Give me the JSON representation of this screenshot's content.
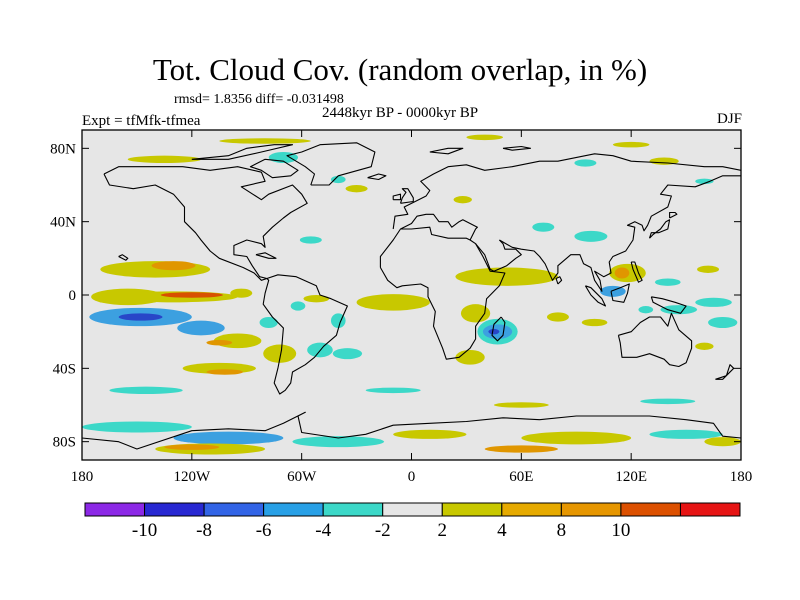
{
  "header": {
    "title": "Tot. Cloud Cov. (random overlap, in %)",
    "stats": "rmsd= 1.8356 diff= -0.031498",
    "experiment": "Expt = tfMfk-tfmea",
    "period": "2448kyr BP - 0000kyr BP",
    "season": "DJF"
  },
  "map": {
    "projection": "cylindrical-equidistant",
    "lon_range": [
      -180,
      180
    ],
    "lat_range": [
      -90,
      90
    ],
    "lat_ticks": [
      {
        "lat": 80,
        "label": "80N"
      },
      {
        "lat": 40,
        "label": "40N"
      },
      {
        "lat": 0,
        "label": "0"
      },
      {
        "lat": -40,
        "label": "40S"
      },
      {
        "lat": -80,
        "label": "80S"
      }
    ],
    "lon_ticks": [
      {
        "lon": -180,
        "label": "180"
      },
      {
        "lon": -120,
        "label": "120W"
      },
      {
        "lon": -60,
        "label": "60W"
      },
      {
        "lon": 0,
        "label": "0"
      },
      {
        "lon": 60,
        "label": "60E"
      },
      {
        "lon": 120,
        "label": "120E"
      },
      {
        "lon": 180,
        "label": "180"
      }
    ],
    "background_color": "#e6e6e6",
    "blobs": [
      {
        "lon": -140,
        "lat": 14,
        "w": 60,
        "h": 9,
        "color": "#c8c800"
      },
      {
        "lon": -130,
        "lat": 16,
        "w": 24,
        "h": 5,
        "color": "#e09600"
      },
      {
        "lon": -155,
        "lat": -1,
        "w": 40,
        "h": 9,
        "color": "#c8c800"
      },
      {
        "lon": -130,
        "lat": -1,
        "w": 70,
        "h": 6,
        "color": "#c8c800"
      },
      {
        "lon": -120,
        "lat": 0,
        "w": 34,
        "h": 3,
        "color": "#d85000"
      },
      {
        "lon": -148,
        "lat": -12,
        "w": 56,
        "h": 10,
        "color": "#3ca0e0"
      },
      {
        "lon": -148,
        "lat": -12,
        "w": 24,
        "h": 4,
        "color": "#2846c8"
      },
      {
        "lon": -115,
        "lat": -18,
        "w": 26,
        "h": 8,
        "color": "#3ca0e0"
      },
      {
        "lon": -95,
        "lat": -25,
        "w": 26,
        "h": 8,
        "color": "#c8c800"
      },
      {
        "lon": -105,
        "lat": -26,
        "w": 14,
        "h": 3,
        "color": "#e09600"
      },
      {
        "lon": -72,
        "lat": -32,
        "w": 18,
        "h": 10,
        "color": "#c8c800"
      },
      {
        "lon": -50,
        "lat": -30,
        "w": 14,
        "h": 8,
        "color": "#3cd8c8"
      },
      {
        "lon": -40,
        "lat": -14,
        "w": 8,
        "h": 8,
        "color": "#3cd8c8"
      },
      {
        "lon": -35,
        "lat": -32,
        "w": 16,
        "h": 6,
        "color": "#3cd8c8"
      },
      {
        "lon": -105,
        "lat": -40,
        "w": 40,
        "h": 6,
        "color": "#c8c800"
      },
      {
        "lon": -102,
        "lat": -42,
        "w": 20,
        "h": 3,
        "color": "#e09600"
      },
      {
        "lon": -78,
        "lat": -15,
        "w": 10,
        "h": 6,
        "color": "#3cd8c8"
      },
      {
        "lon": -93,
        "lat": 1,
        "w": 12,
        "h": 5,
        "color": "#c8c800"
      },
      {
        "lon": -52,
        "lat": -2,
        "w": 14,
        "h": 4,
        "color": "#c8c800"
      },
      {
        "lon": -62,
        "lat": -6,
        "w": 8,
        "h": 5,
        "color": "#3cd8c8"
      },
      {
        "lon": -10,
        "lat": -4,
        "w": 40,
        "h": 9,
        "color": "#c8c800"
      },
      {
        "lon": 52,
        "lat": 10,
        "w": 56,
        "h": 10,
        "color": "#c8c800"
      },
      {
        "lon": 35,
        "lat": -10,
        "w": 16,
        "h": 10,
        "color": "#c8c800"
      },
      {
        "lon": 47,
        "lat": -20,
        "w": 22,
        "h": 14,
        "color": "#3cd8c8"
      },
      {
        "lon": 47,
        "lat": -20,
        "w": 16,
        "h": 8,
        "color": "#3ca0e0"
      },
      {
        "lon": 45,
        "lat": -20,
        "w": 6,
        "h": 3,
        "color": "#2846c8"
      },
      {
        "lon": 32,
        "lat": -34,
        "w": 16,
        "h": 8,
        "color": "#c8c800"
      },
      {
        "lon": 80,
        "lat": -12,
        "w": 12,
        "h": 5,
        "color": "#c8c800"
      },
      {
        "lon": 98,
        "lat": 32,
        "w": 18,
        "h": 6,
        "color": "#3cd8c8"
      },
      {
        "lon": 72,
        "lat": 37,
        "w": 12,
        "h": 5,
        "color": "#3cd8c8"
      },
      {
        "lon": 118,
        "lat": 12,
        "w": 20,
        "h": 10,
        "color": "#c8c800"
      },
      {
        "lon": 115,
        "lat": 12,
        "w": 8,
        "h": 6,
        "color": "#e09600"
      },
      {
        "lon": 110,
        "lat": 2,
        "w": 14,
        "h": 6,
        "color": "#3ca0e0"
      },
      {
        "lon": 128,
        "lat": -8,
        "w": 8,
        "h": 4,
        "color": "#3cd8c8"
      },
      {
        "lon": 146,
        "lat": -8,
        "w": 20,
        "h": 5,
        "color": "#3cd8c8"
      },
      {
        "lon": 162,
        "lat": 14,
        "w": 12,
        "h": 4,
        "color": "#c8c800"
      },
      {
        "lon": 165,
        "lat": -4,
        "w": 20,
        "h": 5,
        "color": "#3cd8c8"
      },
      {
        "lon": 170,
        "lat": -15,
        "w": 16,
        "h": 6,
        "color": "#3cd8c8"
      },
      {
        "lon": 160,
        "lat": -28,
        "w": 10,
        "h": 4,
        "color": "#c8c800"
      },
      {
        "lon": 100,
        "lat": -15,
        "w": 14,
        "h": 4,
        "color": "#c8c800"
      },
      {
        "lon": 140,
        "lat": 7,
        "w": 14,
        "h": 4,
        "color": "#3cd8c8"
      },
      {
        "lon": -135,
        "lat": 74,
        "w": 40,
        "h": 4,
        "color": "#c8c800"
      },
      {
        "lon": -80,
        "lat": 84,
        "w": 50,
        "h": 3,
        "color": "#c8c800"
      },
      {
        "lon": -70,
        "lat": 75,
        "w": 16,
        "h": 6,
        "color": "#3cd8c8"
      },
      {
        "lon": -40,
        "lat": 63,
        "w": 8,
        "h": 4,
        "color": "#3cd8c8"
      },
      {
        "lon": -30,
        "lat": 58,
        "w": 12,
        "h": 4,
        "color": "#c8c800"
      },
      {
        "lon": 40,
        "lat": 86,
        "w": 20,
        "h": 3,
        "color": "#c8c800"
      },
      {
        "lon": 120,
        "lat": 82,
        "w": 20,
        "h": 3,
        "color": "#c8c800"
      },
      {
        "lon": 138,
        "lat": 73,
        "w": 16,
        "h": 4,
        "color": "#c8c800"
      },
      {
        "lon": 95,
        "lat": 72,
        "w": 12,
        "h": 4,
        "color": "#3cd8c8"
      },
      {
        "lon": 28,
        "lat": 52,
        "w": 10,
        "h": 4,
        "color": "#c8c800"
      },
      {
        "lon": -55,
        "lat": 30,
        "w": 12,
        "h": 4,
        "color": "#3cd8c8"
      },
      {
        "lon": 160,
        "lat": 62,
        "w": 10,
        "h": 3,
        "color": "#3cd8c8"
      },
      {
        "lon": -145,
        "lat": -52,
        "w": 40,
        "h": 4,
        "color": "#3cd8c8"
      },
      {
        "lon": -10,
        "lat": -52,
        "w": 30,
        "h": 3,
        "color": "#3cd8c8"
      },
      {
        "lon": 60,
        "lat": -60,
        "w": 30,
        "h": 3,
        "color": "#c8c800"
      },
      {
        "lon": 140,
        "lat": -58,
        "w": 30,
        "h": 3,
        "color": "#3cd8c8"
      },
      {
        "lon": -150,
        "lat": -72,
        "w": 60,
        "h": 6,
        "color": "#3cd8c8"
      },
      {
        "lon": -100,
        "lat": -78,
        "w": 60,
        "h": 7,
        "color": "#3ca0e0"
      },
      {
        "lon": -110,
        "lat": -84,
        "w": 60,
        "h": 6,
        "color": "#c8c800"
      },
      {
        "lon": -120,
        "lat": -83,
        "w": 30,
        "h": 3,
        "color": "#e09600"
      },
      {
        "lon": -40,
        "lat": -80,
        "w": 50,
        "h": 6,
        "color": "#3cd8c8"
      },
      {
        "lon": 10,
        "lat": -76,
        "w": 40,
        "h": 5,
        "color": "#c8c800"
      },
      {
        "lon": 90,
        "lat": -78,
        "w": 60,
        "h": 7,
        "color": "#c8c800"
      },
      {
        "lon": 60,
        "lat": -84,
        "w": 40,
        "h": 4,
        "color": "#e09600"
      },
      {
        "lon": 150,
        "lat": -76,
        "w": 40,
        "h": 5,
        "color": "#3cd8c8"
      },
      {
        "lon": 170,
        "lat": -80,
        "w": 20,
        "h": 5,
        "color": "#c8c800"
      }
    ]
  },
  "colorbar": {
    "colors": [
      "#8c28e6",
      "#2828d2",
      "#3264e6",
      "#28a0e6",
      "#3cd8c8",
      "#e6e6e6",
      "#c8c800",
      "#e6aa00",
      "#e69600",
      "#dc5000",
      "#e61414"
    ],
    "labels": [
      {
        "index": 1,
        "text": "-10"
      },
      {
        "index": 2,
        "text": "-8"
      },
      {
        "index": 3,
        "text": "-6"
      },
      {
        "index": 4,
        "text": "-4"
      },
      {
        "index": 5,
        "text": "-2"
      },
      {
        "index": 6,
        "text": "2"
      },
      {
        "index": 7,
        "text": "4"
      },
      {
        "index": 8,
        "text": "8"
      },
      {
        "index": 9,
        "text": "10"
      }
    ]
  }
}
